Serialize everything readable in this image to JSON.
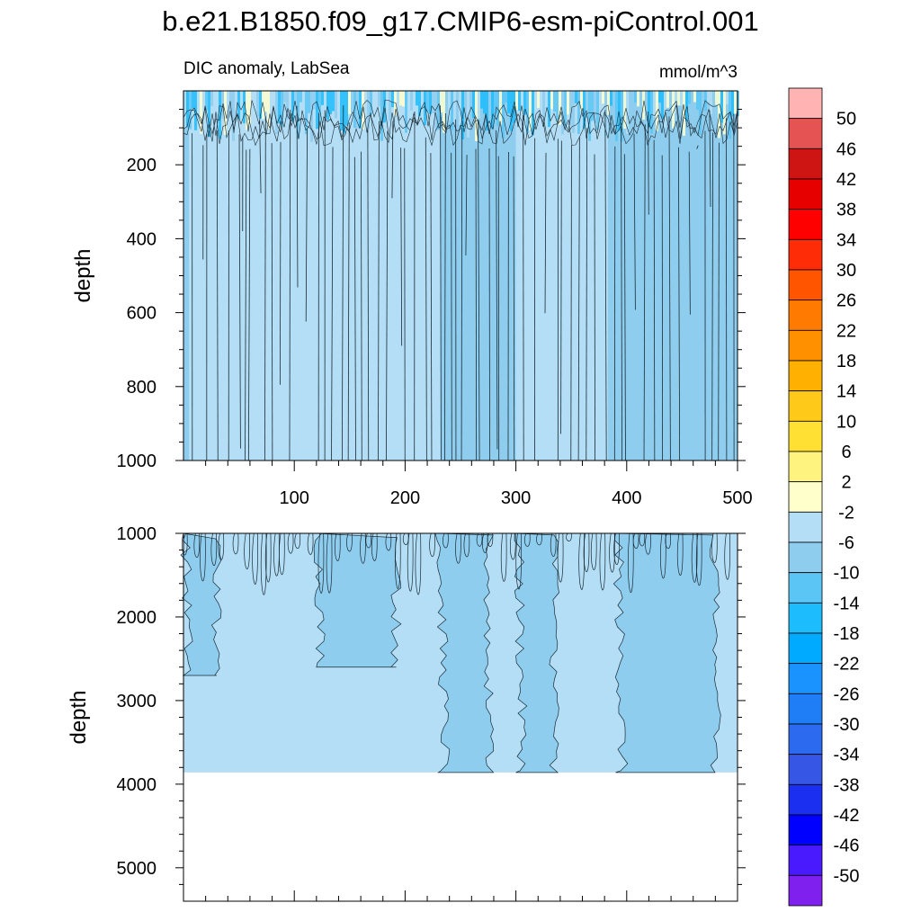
{
  "title": "b.e21.B1850.f09_g17.CMIP6-esm-piControl.001",
  "subtitle_left": "DIC anomaly, LabSea",
  "subtitle_right": "mmol/m^3",
  "chart_data": {
    "type": "heatmap",
    "description": "Depth-time contour plot (Hovmoller) of DIC anomaly, Labrador Sea",
    "x": {
      "label": "",
      "range": [
        0,
        500
      ],
      "ticks": [
        100,
        200,
        300,
        400,
        500
      ]
    },
    "panels": [
      {
        "name": "upper",
        "ylabel": "depth",
        "y_range": [
          0,
          1000
        ],
        "y_ticks": [
          200,
          400,
          600,
          800,
          1000
        ],
        "invert_y": true,
        "bands": [
          {
            "x0": 0,
            "x1": 5,
            "level": "-6"
          },
          {
            "x0": 5,
            "x1": 232,
            "level": "-2"
          },
          {
            "x0": 232,
            "x1": 300,
            "level": "-6"
          },
          {
            "x0": 300,
            "x1": 383,
            "level": "-2"
          },
          {
            "x0": 383,
            "x1": 480,
            "level": "-6"
          },
          {
            "x0": 480,
            "x1": 500,
            "level": "-6"
          }
        ],
        "surface_noise_levels": [
          "2",
          "-2",
          "-6",
          "-10",
          "-14"
        ]
      },
      {
        "name": "lower",
        "ylabel": "depth",
        "y_range": [
          1000,
          5400
        ],
        "y_ticks": [
          1000,
          2000,
          3000,
          4000,
          5000
        ],
        "invert_y": true,
        "data_bottom_depth": 3860,
        "features": [
          {
            "x0": 0,
            "x1": 30,
            "depth_to": 2700,
            "level": "-6"
          },
          {
            "x0": 120,
            "x1": 192,
            "depth_to": 2600,
            "level": "-6"
          },
          {
            "x0": 230,
            "x1": 275,
            "depth_to": 3860,
            "level": "-6"
          },
          {
            "x0": 300,
            "x1": 335,
            "depth_to": 3860,
            "level": "-6"
          },
          {
            "x0": 390,
            "x1": 480,
            "depth_to": 3860,
            "level": "-6"
          }
        ]
      }
    ],
    "colorbar": {
      "unit": "mmol/m^3",
      "labels": [
        "50",
        "46",
        "42",
        "38",
        "34",
        "30",
        "26",
        "22",
        "18",
        "14",
        "10",
        "6",
        "2",
        "-2",
        "-6",
        "-10",
        "-14",
        "-18",
        "-22",
        "-26",
        "-30",
        "-34",
        "-38",
        "-42",
        "-46",
        "-50"
      ],
      "colors": [
        "#ffb3b3",
        "#e65353",
        "#cf1414",
        "#e60000",
        "#ff0000",
        "#ff2c08",
        "#ff5500",
        "#ff7a00",
        "#ff9000",
        "#ffb000",
        "#ffc91a",
        "#ffe033",
        "#fff380",
        "#ffffcc",
        "#b3def5",
        "#8fcdef",
        "#5bc6f5",
        "#1dbcfd",
        "#00aaff",
        "#1a93ff",
        "#1f7ef5",
        "#2c6af0",
        "#3657e6",
        "#1b2ff0",
        "#0000ff",
        "#4a1aff",
        "#7f20ef"
      ]
    }
  }
}
